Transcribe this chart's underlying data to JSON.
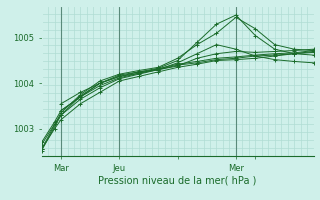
{
  "xlabel": "Pression niveau de la mer( hPa )",
  "background_color": "#cff0ea",
  "grid_color": "#b0ddd4",
  "line_color": "#1a6b2a",
  "vline_color": "#5a8a7a",
  "xlim": [
    0,
    84
  ],
  "ylim": [
    1002.4,
    1005.7
  ],
  "yticks": [
    1003,
    1004,
    1005
  ],
  "xtick_positions": [
    6,
    24,
    42,
    60,
    66
  ],
  "xtick_labels": [
    "Mar",
    "Jeu",
    "",
    "Mer",
    ""
  ],
  "vline_positions": [
    6,
    24,
    60
  ],
  "series": [
    {
      "x": [
        0,
        4,
        6,
        12,
        18,
        24,
        30,
        36,
        42,
        48,
        54,
        60,
        66,
        72,
        78,
        84
      ],
      "y": [
        1002.55,
        1003.0,
        1003.2,
        1003.55,
        1003.8,
        1004.05,
        1004.15,
        1004.25,
        1004.35,
        1004.42,
        1004.5,
        1004.52,
        1004.55,
        1004.6,
        1004.65,
        1004.7
      ]
    },
    {
      "x": [
        0,
        4,
        6,
        12,
        18,
        24,
        30,
        36,
        42,
        48,
        54,
        60,
        66,
        72,
        78,
        84
      ],
      "y": [
        1002.65,
        1003.1,
        1003.3,
        1003.65,
        1003.9,
        1004.1,
        1004.2,
        1004.3,
        1004.4,
        1004.45,
        1004.52,
        1004.55,
        1004.6,
        1004.62,
        1004.65,
        1004.68
      ]
    },
    {
      "x": [
        0,
        4,
        6,
        12,
        18,
        24,
        30,
        36,
        42,
        48,
        54,
        60,
        66,
        72,
        78,
        84
      ],
      "y": [
        1002.7,
        1003.15,
        1003.4,
        1003.7,
        1003.95,
        1004.12,
        1004.22,
        1004.32,
        1004.42,
        1004.48,
        1004.55,
        1004.58,
        1004.62,
        1004.65,
        1004.67,
        1004.72
      ]
    },
    {
      "x": [
        6,
        12,
        18,
        24,
        30,
        36,
        42,
        48,
        54,
        60,
        66,
        72,
        78,
        84
      ],
      "y": [
        1003.55,
        1003.8,
        1004.0,
        1004.15,
        1004.25,
        1004.3,
        1004.38,
        1004.55,
        1004.65,
        1004.7,
        1004.68,
        1004.7,
        1004.72,
        1004.75
      ]
    },
    {
      "x": [
        0,
        6,
        12,
        18,
        24,
        30,
        36,
        42,
        48,
        54,
        60,
        66,
        72,
        78,
        84
      ],
      "y": [
        1002.55,
        1003.35,
        1003.75,
        1004.05,
        1004.2,
        1004.28,
        1004.35,
        1004.55,
        1004.85,
        1005.1,
        1005.45,
        1005.2,
        1004.85,
        1004.75,
        1004.72
      ]
    },
    {
      "x": [
        0,
        6,
        12,
        18,
        24,
        30,
        36,
        42,
        48,
        54,
        60,
        66,
        72,
        78,
        84
      ],
      "y": [
        1002.52,
        1003.3,
        1003.72,
        1004.0,
        1004.18,
        1004.25,
        1004.33,
        1004.5,
        1004.9,
        1005.3,
        1005.5,
        1005.05,
        1004.75,
        1004.65,
        1004.62
      ]
    },
    {
      "x": [
        6,
        12,
        18,
        24,
        30,
        36,
        42,
        48,
        54,
        60,
        66,
        72,
        78,
        84
      ],
      "y": [
        1003.4,
        1003.7,
        1004.0,
        1004.15,
        1004.22,
        1004.3,
        1004.45,
        1004.65,
        1004.85,
        1004.75,
        1004.6,
        1004.52,
        1004.48,
        1004.45
      ]
    }
  ]
}
